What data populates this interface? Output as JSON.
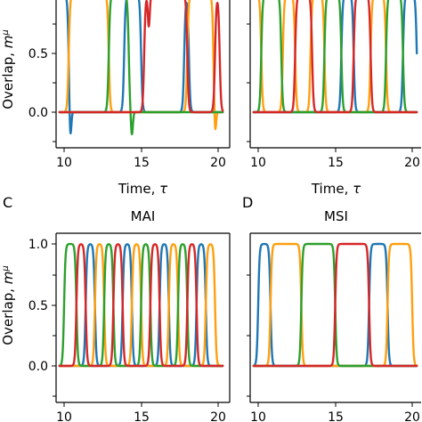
{
  "colors": {
    "blue": "#1f77b4",
    "orange": "#ff9f0f",
    "green": "#2ca02c",
    "red": "#d62728"
  },
  "chart_data": [
    {
      "panel": "A",
      "letter": "",
      "title": "",
      "type": "line",
      "xlabel": "Time, τ",
      "ylabel": "Overlap, m^μ",
      "xlim": [
        10,
        20
      ],
      "ylim": [
        -0.4,
        1.05
      ],
      "xticks": [
        "10",
        "15",
        "20"
      ],
      "yticks": [
        "0.0",
        "0.5"
      ],
      "series": [
        {
          "color": "blue",
          "active": [
            [
              9.4,
              10.3
            ],
            [
              13.9,
              15.0
            ],
            [
              17.8,
              18.1
            ]
          ],
          "dips": [
            [
              10.4,
              -0.26
            ]
          ]
        },
        {
          "color": "orange",
          "active": [
            [
              10.3,
              12.9
            ],
            [
              18.0,
              19.7
            ]
          ],
          "dips": [
            [
              19.8,
              -0.22
            ]
          ]
        },
        {
          "color": "green",
          "active": [
            [
              12.9,
              14.2
            ]
          ],
          "dips": [
            [
              14.4,
              -0.2
            ]
          ]
        },
        {
          "color": "red",
          "active": [
            [
              15.2,
              18.0
            ],
            [
              19.8,
              20.1
            ]
          ],
          "dips": [
            [
              15.5,
              -0.27
            ]
          ]
        }
      ]
    },
    {
      "panel": "B",
      "letter": "",
      "title": "",
      "type": "line",
      "xlabel": "Time, τ",
      "ylabel": "",
      "xlim": [
        10,
        20
      ],
      "ylim": [
        -0.4,
        1.05
      ],
      "xticks": [
        "10",
        "15",
        "20"
      ],
      "yticks": [],
      "series": [
        {
          "color": "blue",
          "active": [
            [
              15.4,
              16.2
            ],
            [
              19.4,
              20.3
            ]
          ],
          "dips": []
        },
        {
          "color": "orange",
          "active": [
            [
              9.5,
              10.2
            ],
            [
              11.6,
              12.4
            ],
            [
              13.4,
              14.3
            ],
            [
              17.3,
              18.3
            ]
          ],
          "dips": []
        },
        {
          "color": "green",
          "active": [
            [
              10.2,
              11.5
            ],
            [
              14.3,
              15.4
            ],
            [
              18.3,
              19.4
            ]
          ],
          "dips": []
        },
        {
          "color": "red",
          "active": [
            [
              12.4,
              13.5
            ],
            [
              16.2,
              17.3
            ]
          ],
          "dips": []
        }
      ]
    },
    {
      "panel": "C",
      "letter": "C",
      "title": "MAI",
      "type": "line",
      "xlabel": "",
      "ylabel": "Overlap, m^μ",
      "xlim": [
        10,
        20
      ],
      "ylim": [
        -0.3,
        1.15
      ],
      "xticks": [
        "10",
        "15",
        "20"
      ],
      "yticks": [
        "0.0",
        "0.5",
        "1.0"
      ],
      "series": [
        {
          "color": "blue",
          "active": [
            [
              11.4,
              12.0
            ],
            [
              13.8,
              14.4
            ],
            [
              16.2,
              16.8
            ],
            [
              18.6,
              19.2
            ]
          ],
          "dips": []
        },
        {
          "color": "orange",
          "active": [
            [
              12.0,
              12.6
            ],
            [
              14.4,
              15.0
            ],
            [
              16.8,
              17.4
            ],
            [
              19.2,
              19.8
            ]
          ],
          "dips": []
        },
        {
          "color": "green",
          "active": [
            [
              10.0,
              10.8
            ],
            [
              12.6,
              13.2
            ],
            [
              15.0,
              15.6
            ],
            [
              17.4,
              18.0
            ]
          ],
          "dips": []
        },
        {
          "color": "red",
          "active": [
            [
              10.8,
              11.4
            ],
            [
              13.2,
              13.8
            ],
            [
              15.6,
              16.2
            ],
            [
              18.0,
              18.6
            ]
          ],
          "dips": []
        }
      ]
    },
    {
      "panel": "D",
      "letter": "D",
      "title": "MSI",
      "type": "line",
      "xlabel": "",
      "ylabel": "",
      "xlim": [
        10,
        20
      ],
      "ylim": [
        -0.3,
        1.15
      ],
      "xticks": [
        "10",
        "15",
        "20"
      ],
      "yticks": [],
      "series": [
        {
          "color": "blue",
          "active": [
            [
              10.0,
              10.8
            ],
            [
              17.2,
              18.4
            ]
          ],
          "dips": []
        },
        {
          "color": "orange",
          "active": [
            [
              10.8,
              12.8
            ],
            [
              18.4,
              20.0
            ]
          ],
          "dips": []
        },
        {
          "color": "green",
          "active": [
            [
              12.8,
              15.0
            ]
          ],
          "dips": []
        },
        {
          "color": "red",
          "active": [
            [
              15.0,
              17.2
            ]
          ],
          "dips": []
        }
      ]
    }
  ]
}
